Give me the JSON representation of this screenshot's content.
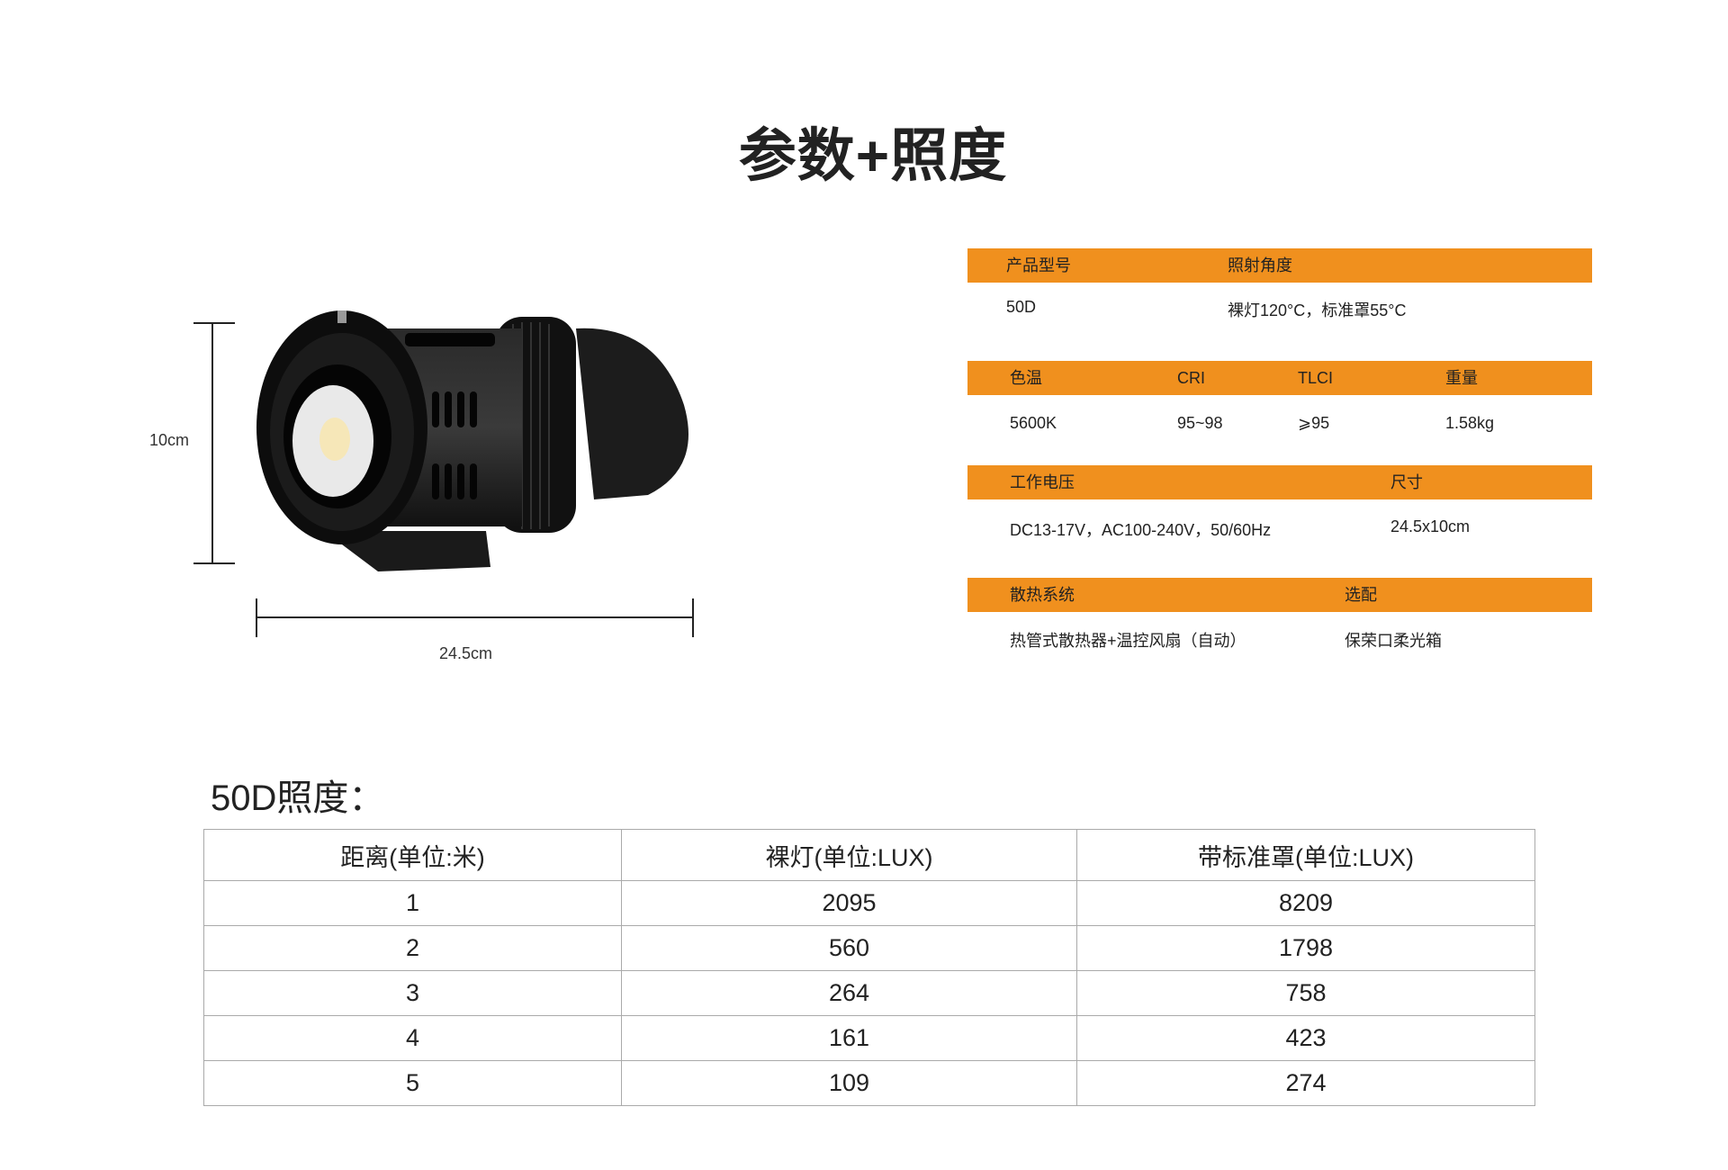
{
  "page": {
    "title": "参数+照度",
    "accent_color": "#F0901E"
  },
  "dimensions": {
    "height_label": "10cm",
    "width_label": "24.5cm"
  },
  "specs": [
    {
      "headers": [
        "产品型号",
        "照射角度"
      ],
      "values": [
        "50D",
        "裸灯120°C，标准罩55°C"
      ]
    },
    {
      "headers": [
        "色温",
        "CRI",
        "TLCI",
        "重量"
      ],
      "values": [
        "5600K",
        "95~98",
        "⩾95",
        "1.58kg"
      ]
    },
    {
      "headers": [
        "工作电压",
        "尺寸"
      ],
      "values": [
        "DC13-17V，AC100-240V，50/60Hz",
        "24.5x10cm"
      ]
    },
    {
      "headers": [
        "散热系统",
        "选配"
      ],
      "values": [
        "热管式散热器+温控风扇（自动）",
        "保荣口柔光箱"
      ]
    }
  ],
  "illuminance": {
    "title": "50D照度：",
    "columns": [
      "距离(单位:米)",
      "裸灯(单位:LUX)",
      "带标准罩(单位:LUX)"
    ],
    "rows": [
      [
        "1",
        "2095",
        "8209"
      ],
      [
        "2",
        "560",
        "1798"
      ],
      [
        "3",
        "264",
        "758"
      ],
      [
        "4",
        "161",
        "423"
      ],
      [
        "5",
        "109",
        "274"
      ]
    ]
  }
}
